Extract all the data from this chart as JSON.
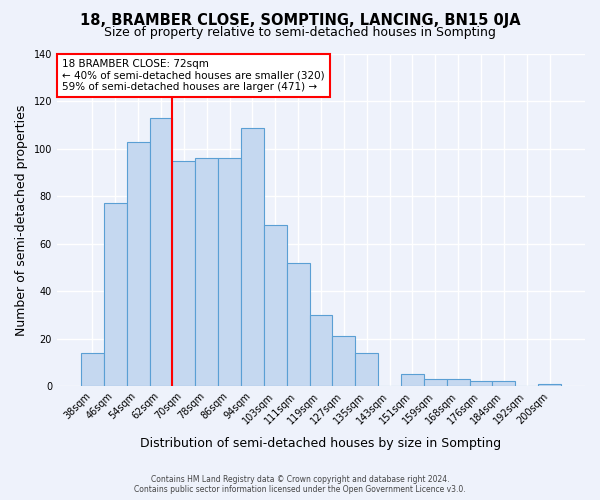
{
  "title": "18, BRAMBER CLOSE, SOMPTING, LANCING, BN15 0JA",
  "subtitle": "Size of property relative to semi-detached houses in Sompting",
  "xlabel": "Distribution of semi-detached houses by size in Sompting",
  "ylabel": "Number of semi-detached properties",
  "footer_line1": "Contains HM Land Registry data © Crown copyright and database right 2024.",
  "footer_line2": "Contains public sector information licensed under the Open Government Licence v3.0.",
  "categories": [
    "38sqm",
    "46sqm",
    "54sqm",
    "62sqm",
    "70sqm",
    "78sqm",
    "86sqm",
    "94sqm",
    "103sqm",
    "111sqm",
    "119sqm",
    "127sqm",
    "135sqm",
    "143sqm",
    "151sqm",
    "159sqm",
    "168sqm",
    "176sqm",
    "184sqm",
    "192sqm",
    "200sqm"
  ],
  "values": [
    14,
    77,
    103,
    113,
    95,
    96,
    96,
    109,
    68,
    52,
    30,
    21,
    14,
    0,
    5,
    3,
    3,
    2,
    2,
    0,
    1
  ],
  "bar_color": "#c5d8f0",
  "bar_edge_color": "#5a9fd4",
  "vline_color": "red",
  "vline_index": 4,
  "annotation_title": "18 BRAMBER CLOSE: 72sqm",
  "annotation_line1": "← 40% of semi-detached houses are smaller (320)",
  "annotation_line2": "59% of semi-detached houses are larger (471) →",
  "ylim": [
    0,
    140
  ],
  "yticks": [
    0,
    20,
    40,
    60,
    80,
    100,
    120,
    140
  ],
  "background_color": "#eef2fb",
  "grid_color": "#ffffff",
  "title_fontsize": 10.5,
  "subtitle_fontsize": 9,
  "axis_label_fontsize": 9,
  "tick_fontsize": 7
}
